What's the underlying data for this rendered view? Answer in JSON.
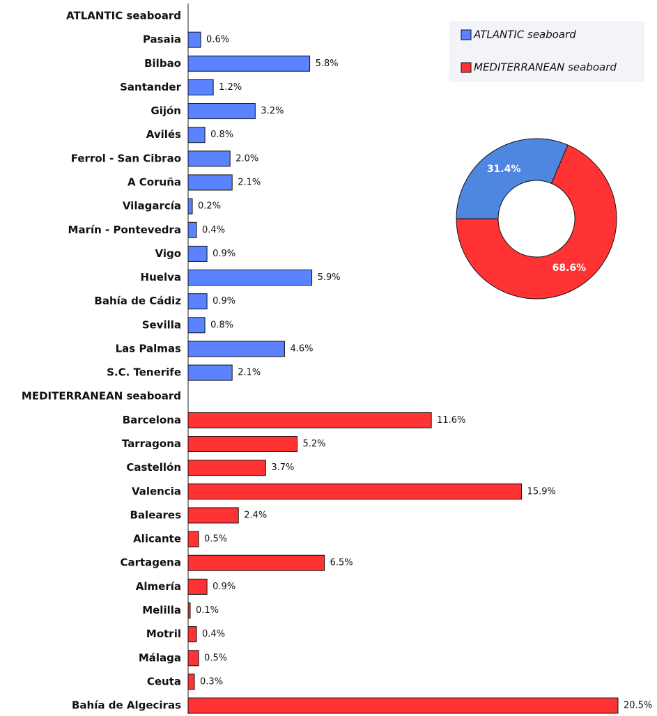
{
  "chart_data": [
    {
      "type": "bar",
      "categories": [
        "ATLANTIC seaboard",
        "Pasaia",
        "Bilbao",
        "Santander",
        "Gijón",
        "Avilés",
        "Ferrol - San Cibrao",
        "A Coruña",
        "Vilagarcía",
        "Marín - Pontevedra",
        "Vigo",
        "Huelva",
        "Bahía de Cádiz",
        "Sevilla",
        "Las Palmas",
        "S.C. Tenerife",
        "MEDITERRANEAN seaboard",
        "Barcelona",
        "Tarragona",
        "Castellón",
        "Valencia",
        "Baleares",
        "Alicante",
        "Cartagena",
        "Almería",
        "Melilla",
        "Motril",
        "Málaga",
        "Ceuta",
        "Bahía de Algeciras"
      ],
      "xlim": [
        0,
        20.5
      ],
      "series": [
        {
          "name": "ATLANTIC seaboard",
          "color": "#5b83ff",
          "values": [
            null,
            0.6,
            5.8,
            1.2,
            3.2,
            0.8,
            2.0,
            2.1,
            0.2,
            0.4,
            0.9,
            5.9,
            0.9,
            0.8,
            4.6,
            2.1,
            null,
            null,
            null,
            null,
            null,
            null,
            null,
            null,
            null,
            null,
            null,
            null,
            null,
            null
          ],
          "value_labels": [
            null,
            "0.6%",
            "5.8%",
            "1.2%",
            "3.2%",
            "0.8%",
            "2.0%",
            "2.1%",
            "0.2%",
            "0.4%",
            "0.9%",
            "5.9%",
            "0.9%",
            "0.8%",
            "4.6%",
            "2.1%",
            null,
            null,
            null,
            null,
            null,
            null,
            null,
            null,
            null,
            null,
            null,
            null,
            null,
            null
          ]
        },
        {
          "name": "MEDITERRANEAN seaboard",
          "color": "#ff3333",
          "values": [
            null,
            null,
            null,
            null,
            null,
            null,
            null,
            null,
            null,
            null,
            null,
            null,
            null,
            null,
            null,
            null,
            null,
            11.6,
            5.2,
            3.7,
            15.9,
            2.4,
            0.5,
            6.5,
            0.9,
            0.1,
            0.4,
            0.5,
            0.3,
            20.5
          ],
          "value_labels": [
            null,
            null,
            null,
            null,
            null,
            null,
            null,
            null,
            null,
            null,
            null,
            null,
            null,
            null,
            null,
            null,
            null,
            "11.6%",
            "5.2%",
            "3.7%",
            "15.9%",
            "2.4%",
            "0.5%",
            "6.5%",
            "0.9%",
            "0.1%",
            "0.4%",
            "0.5%",
            "0.3%",
            "20.5%"
          ]
        }
      ],
      "legend": "top-right"
    },
    {
      "type": "pie",
      "donut": true,
      "values": [
        31.4,
        68.6
      ],
      "value_labels": [
        "31.4%",
        "68.6%"
      ],
      "colors": [
        "#4f86e0",
        "#ff3333"
      ]
    }
  ]
}
